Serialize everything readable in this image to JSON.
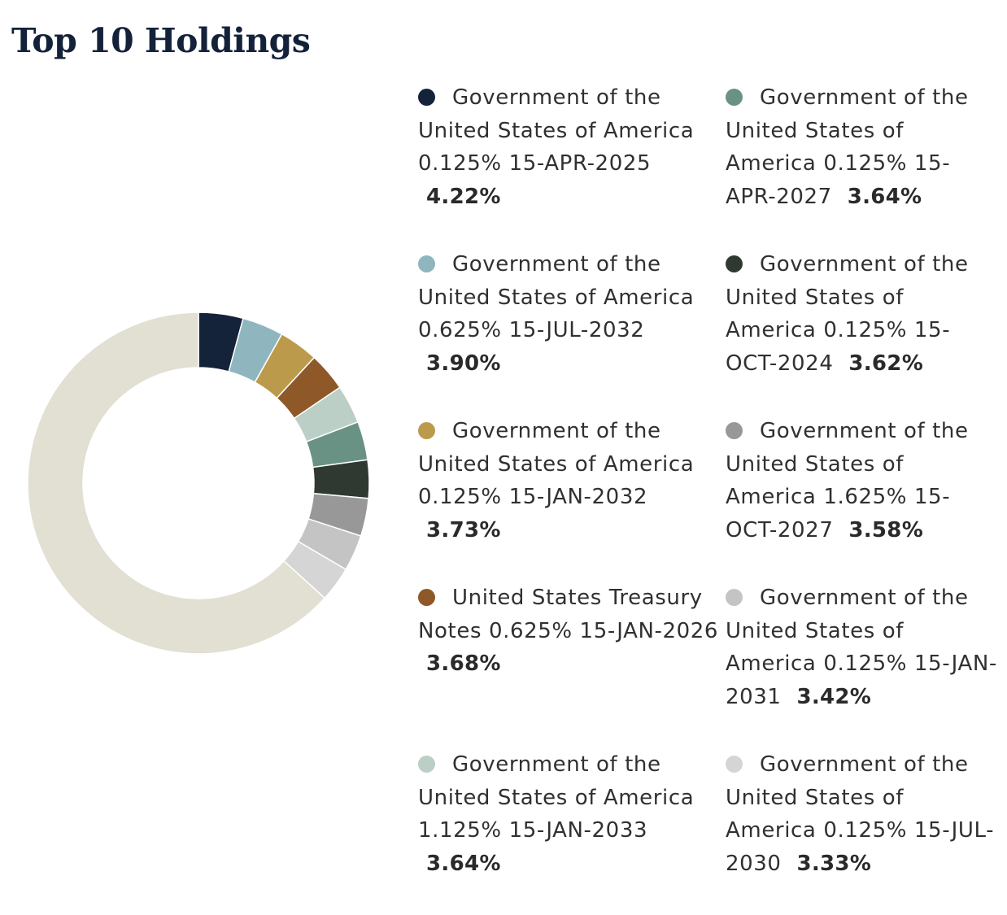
{
  "title": "Top 10 Holdings",
  "colors": {
    "remainder": "#e2dfd3",
    "divider": "#ffffff"
  },
  "chart_data": {
    "type": "pie",
    "variant": "donut",
    "title": "Top 10 Holdings",
    "series": [
      {
        "name": "Government of the United States of America 0.125% 15-APR-2025",
        "value": 4.22,
        "value_label": "4.22%",
        "color": "#14223a"
      },
      {
        "name": "Government of the United States of America 0.625% 15-JUL-2032",
        "value": 3.9,
        "value_label": "3.90%",
        "color": "#8fb6be"
      },
      {
        "name": "Government of the United States of America 0.125% 15-JAN-2032",
        "value": 3.73,
        "value_label": "3.73%",
        "color": "#bb9b4b"
      },
      {
        "name": "United States Treasury Notes 0.625% 15-JAN-2026",
        "value": 3.68,
        "value_label": "3.68%",
        "color": "#8e5828"
      },
      {
        "name": "Government of the United States of America 1.125% 15-JAN-2033",
        "value": 3.64,
        "value_label": "3.64%",
        "color": "#bccfc6"
      },
      {
        "name": "Government of the United States of America 0.125% 15-APR-2027",
        "value": 3.64,
        "value_label": "3.64%",
        "color": "#6a9284"
      },
      {
        "name": "Government of the United States of America 0.125% 15-OCT-2024",
        "value": 3.62,
        "value_label": "3.62%",
        "color": "#2f3932"
      },
      {
        "name": "Government of the United States of America 1.625% 15-OCT-2027",
        "value": 3.58,
        "value_label": "3.58%",
        "color": "#989898"
      },
      {
        "name": "Government of the United States of America 0.125% 15-JAN-2031",
        "value": 3.42,
        "value_label": "3.42%",
        "color": "#c4c4c4"
      },
      {
        "name": "Government of the United States of America 0.125% 15-JUL-2030",
        "value": 3.33,
        "value_label": "3.33%",
        "color": "#d5d5d5"
      }
    ],
    "remainder": {
      "value": 63.24
    },
    "legend_position": "right"
  }
}
